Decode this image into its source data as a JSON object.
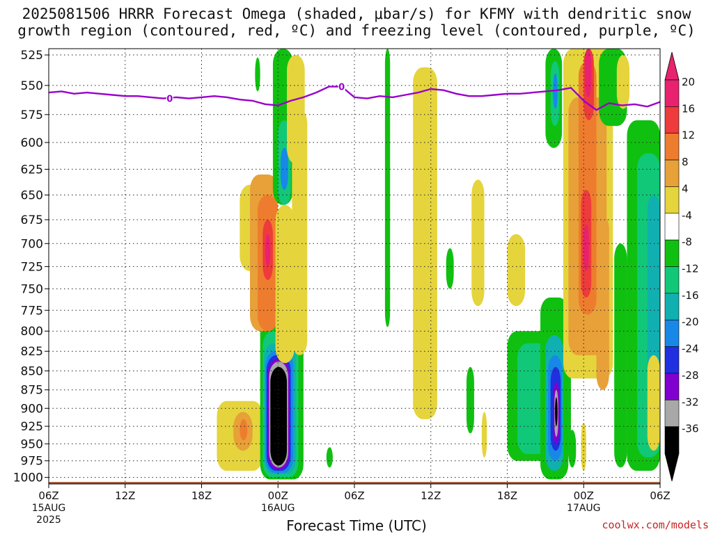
{
  "title_line_1": "2025081506 HRRR Forecast Omega (shaded, μbar/s) for KFMY with dendritic snow",
  "title_line_2": "growth region (contoured, red, ºC) and freezing level (contoured, purple, ºC)",
  "xlabel": "Forecast Time (UTC)",
  "credit": "coolwx.com/models",
  "chart_data": {
    "type": "heatmap",
    "title": "2025081506 HRRR Forecast Omega (shaded, μbar/s) for KFMY with dendritic snow growth region (contoured, red, ºC) and freezing level (contoured, purple, ºC)",
    "xlabel": "Forecast Time (UTC)",
    "ylabel": "",
    "x_range_hours": [
      0,
      48
    ],
    "y_range_mb": [
      1010,
      520
    ],
    "y_log_scale": true,
    "grid": true,
    "x_ticks": [
      {
        "hour": 0,
        "label": "06Z",
        "sub": "15AUG",
        "sub2": "2025"
      },
      {
        "hour": 6,
        "label": "12Z"
      },
      {
        "hour": 12,
        "label": "18Z"
      },
      {
        "hour": 18,
        "label": "00Z",
        "sub": "16AUG"
      },
      {
        "hour": 24,
        "label": "06Z"
      },
      {
        "hour": 30,
        "label": "12Z"
      },
      {
        "hour": 36,
        "label": "18Z"
      },
      {
        "hour": 42,
        "label": "00Z",
        "sub": "17AUG"
      },
      {
        "hour": 48,
        "label": "06Z"
      }
    ],
    "y_ticks": [
      525,
      550,
      575,
      600,
      625,
      650,
      675,
      700,
      725,
      750,
      775,
      800,
      825,
      850,
      875,
      900,
      925,
      950,
      975,
      1000
    ],
    "colorbar": {
      "labels": [
        "20",
        "16",
        "12",
        "8",
        "4",
        "-4",
        "-8",
        "-12",
        "-16",
        "-20",
        "-24",
        "-28",
        "-32",
        "-36"
      ],
      "colors": [
        "#e8226e",
        "#ee3b3b",
        "#ee7c2e",
        "#e8a038",
        "#e5d43c",
        "#ffffff",
        "#10c010",
        "#10c878",
        "#10b0b0",
        "#1888e8",
        "#2030e0",
        "#8000d0",
        "#a8a8a8",
        "#000000"
      ],
      "top_color": "#e8226e",
      "bottom_color": "#000000"
    },
    "freezing_level": {
      "label": "0",
      "color": "#9900cc",
      "points": [
        [
          0,
          556
        ],
        [
          1,
          555
        ],
        [
          2,
          557
        ],
        [
          3,
          556
        ],
        [
          4,
          557
        ],
        [
          5,
          558
        ],
        [
          6,
          559
        ],
        [
          7,
          559
        ],
        [
          8,
          560
        ],
        [
          9,
          561
        ],
        [
          10,
          560
        ],
        [
          11,
          561
        ],
        [
          12,
          560
        ],
        [
          13,
          559
        ],
        [
          14,
          560
        ],
        [
          15,
          562
        ],
        [
          16,
          563
        ],
        [
          17,
          566
        ],
        [
          18,
          567
        ],
        [
          19,
          563
        ],
        [
          20,
          560
        ],
        [
          21,
          556
        ],
        [
          22,
          551
        ],
        [
          23,
          551
        ],
        [
          24,
          560
        ],
        [
          25,
          561
        ],
        [
          26,
          559
        ],
        [
          27,
          560
        ],
        [
          28,
          558
        ],
        [
          29,
          556
        ],
        [
          30,
          553
        ],
        [
          31,
          554
        ],
        [
          32,
          557
        ],
        [
          33,
          559
        ],
        [
          34,
          559
        ],
        [
          35,
          558
        ],
        [
          36,
          557
        ],
        [
          37,
          557
        ],
        [
          38,
          556
        ],
        [
          39,
          555
        ],
        [
          40,
          554
        ],
        [
          41,
          552
        ],
        [
          42,
          563
        ],
        [
          43,
          571
        ],
        [
          44,
          565
        ],
        [
          45,
          567
        ],
        [
          46,
          566
        ],
        [
          47,
          568
        ],
        [
          48,
          564
        ]
      ],
      "label_hours": [
        9.5,
        23
      ]
    },
    "ground_mb": 1007,
    "ground_color": "#a0522d",
    "shaded_cells": [
      {
        "t0": 13.2,
        "t1": 16.8,
        "p0": 890,
        "p1": 990,
        "color": "#e5d43c"
      },
      {
        "t0": 14.5,
        "t1": 16.0,
        "p0": 905,
        "p1": 960,
        "color": "#e8a038"
      },
      {
        "t0": 15.0,
        "t1": 15.6,
        "p0": 915,
        "p1": 945,
        "color": "#ee7c2e"
      },
      {
        "t0": 16.6,
        "t1": 20.0,
        "p0": 785,
        "p1": 1003,
        "color": "#10c010"
      },
      {
        "t0": 16.8,
        "t1": 19.6,
        "p0": 800,
        "p1": 1000,
        "color": "#10c878"
      },
      {
        "t0": 16.9,
        "t1": 19.4,
        "p0": 815,
        "p1": 995,
        "color": "#10b0b0"
      },
      {
        "t0": 17.0,
        "t1": 19.2,
        "p0": 825,
        "p1": 993,
        "color": "#1888e8"
      },
      {
        "t0": 17.1,
        "t1": 19.0,
        "p0": 830,
        "p1": 990,
        "color": "#2030e0"
      },
      {
        "t0": 17.2,
        "t1": 18.9,
        "p0": 835,
        "p1": 988,
        "color": "#8000d0"
      },
      {
        "t0": 17.3,
        "t1": 18.8,
        "p0": 838,
        "p1": 985,
        "color": "#a8a8a8"
      },
      {
        "t0": 17.4,
        "t1": 18.7,
        "p0": 845,
        "p1": 982,
        "color": "#000000"
      },
      {
        "t0": 15.0,
        "t1": 17.4,
        "p0": 640,
        "p1": 730,
        "color": "#e5d43c"
      },
      {
        "t0": 15.8,
        "t1": 18.0,
        "p0": 630,
        "p1": 800,
        "color": "#e8a038"
      },
      {
        "t0": 16.4,
        "t1": 18.0,
        "p0": 650,
        "p1": 800,
        "color": "#ee7c2e"
      },
      {
        "t0": 16.8,
        "t1": 17.6,
        "p0": 675,
        "p1": 740,
        "color": "#ee3b3b"
      },
      {
        "t0": 17.0,
        "t1": 17.4,
        "p0": 690,
        "p1": 725,
        "color": "#e8226e"
      },
      {
        "t0": 16.2,
        "t1": 16.6,
        "p0": 527,
        "p1": 555,
        "color": "#10c010"
      },
      {
        "t0": 17.6,
        "t1": 19.2,
        "p0": 520,
        "p1": 660,
        "color": "#10c010"
      },
      {
        "t0": 18.0,
        "t1": 19.0,
        "p0": 580,
        "p1": 660,
        "color": "#10c878"
      },
      {
        "t0": 18.2,
        "t1": 18.8,
        "p0": 605,
        "p1": 645,
        "color": "#1888e8"
      },
      {
        "t0": 17.8,
        "t1": 19.3,
        "p0": 660,
        "p1": 840,
        "color": "#e5d43c"
      },
      {
        "t0": 18.7,
        "t1": 20.1,
        "p0": 525,
        "p1": 620,
        "color": "#e5d43c"
      },
      {
        "t0": 19.1,
        "t1": 20.3,
        "p0": 570,
        "p1": 830,
        "color": "#e5d43c"
      },
      {
        "t0": 21.8,
        "t1": 22.3,
        "p0": 955,
        "p1": 985,
        "color": "#10c010"
      },
      {
        "t0": 26.4,
        "t1": 26.8,
        "p0": 520,
        "p1": 795,
        "color": "#10c010"
      },
      {
        "t0": 28.6,
        "t1": 30.5,
        "p0": 535,
        "p1": 915,
        "color": "#e5d43c"
      },
      {
        "t0": 31.2,
        "t1": 31.8,
        "p0": 705,
        "p1": 750,
        "color": "#10c010"
      },
      {
        "t0": 33.2,
        "t1": 34.2,
        "p0": 635,
        "p1": 770,
        "color": "#e5d43c"
      },
      {
        "t0": 32.8,
        "t1": 33.4,
        "p0": 845,
        "p1": 935,
        "color": "#10c010"
      },
      {
        "t0": 34.0,
        "t1": 34.4,
        "p0": 905,
        "p1": 970,
        "color": "#e5d43c"
      },
      {
        "t0": 36.0,
        "t1": 37.4,
        "p0": 690,
        "p1": 770,
        "color": "#e5d43c"
      },
      {
        "t0": 36.0,
        "t1": 41.0,
        "p0": 800,
        "p1": 975,
        "color": "#10c010"
      },
      {
        "t0": 36.8,
        "t1": 40.8,
        "p0": 815,
        "p1": 965,
        "color": "#10c878"
      },
      {
        "t0": 38.6,
        "t1": 40.8,
        "p0": 760,
        "p1": 1003,
        "color": "#10c010"
      },
      {
        "t0": 39.0,
        "t1": 40.4,
        "p0": 805,
        "p1": 990,
        "color": "#10b0b0"
      },
      {
        "t0": 39.2,
        "t1": 40.3,
        "p0": 830,
        "p1": 975,
        "color": "#1888e8"
      },
      {
        "t0": 39.4,
        "t1": 40.2,
        "p0": 845,
        "p1": 960,
        "color": "#2030e0"
      },
      {
        "t0": 39.6,
        "t1": 40.1,
        "p0": 865,
        "p1": 950,
        "color": "#8000d0"
      },
      {
        "t0": 39.7,
        "t1": 40.0,
        "p0": 875,
        "p1": 940,
        "color": "#a8a8a8"
      },
      {
        "t0": 39.75,
        "t1": 39.95,
        "p0": 885,
        "p1": 925,
        "color": "#000000"
      },
      {
        "t0": 39.0,
        "t1": 40.3,
        "p0": 520,
        "p1": 605,
        "color": "#10c010"
      },
      {
        "t0": 39.4,
        "t1": 40.1,
        "p0": 530,
        "p1": 585,
        "color": "#10c878"
      },
      {
        "t0": 39.6,
        "t1": 39.95,
        "p0": 540,
        "p1": 570,
        "color": "#1888e8"
      },
      {
        "t0": 40.4,
        "t1": 44.3,
        "p0": 520,
        "p1": 860,
        "color": "#e5d43c"
      },
      {
        "t0": 40.8,
        "t1": 43.8,
        "p0": 560,
        "p1": 830,
        "color": "#e8a038"
      },
      {
        "t0": 41.6,
        "t1": 43.0,
        "p0": 530,
        "p1": 780,
        "color": "#ee7c2e"
      },
      {
        "t0": 42.0,
        "t1": 42.8,
        "p0": 520,
        "p1": 580,
        "color": "#ee3b3b"
      },
      {
        "t0": 42.1,
        "t1": 42.6,
        "p0": 520,
        "p1": 560,
        "color": "#e8226e"
      },
      {
        "t0": 41.8,
        "t1": 42.6,
        "p0": 645,
        "p1": 760,
        "color": "#ee3b3b"
      },
      {
        "t0": 42.0,
        "t1": 42.4,
        "p0": 680,
        "p1": 730,
        "color": "#e8226e"
      },
      {
        "t0": 43.0,
        "t1": 44.0,
        "p0": 670,
        "p1": 875,
        "color": "#e8a038"
      },
      {
        "t0": 43.2,
        "t1": 45.4,
        "p0": 520,
        "p1": 585,
        "color": "#10c010"
      },
      {
        "t0": 44.6,
        "t1": 45.6,
        "p0": 525,
        "p1": 570,
        "color": "#e5d43c"
      },
      {
        "t0": 44.4,
        "t1": 45.4,
        "p0": 700,
        "p1": 985,
        "color": "#10c010"
      },
      {
        "t0": 45.4,
        "t1": 48.0,
        "p0": 580,
        "p1": 990,
        "color": "#10c010"
      },
      {
        "t0": 46.2,
        "t1": 48.0,
        "p0": 610,
        "p1": 970,
        "color": "#10c878"
      },
      {
        "t0": 47.0,
        "t1": 48.0,
        "p0": 650,
        "p1": 960,
        "color": "#10b0b0"
      },
      {
        "t0": 40.8,
        "t1": 41.4,
        "p0": 930,
        "p1": 985,
        "color": "#10c010"
      },
      {
        "t0": 41.8,
        "t1": 42.2,
        "p0": 920,
        "p1": 990,
        "color": "#e5d43c"
      },
      {
        "t0": 47.0,
        "t1": 48.0,
        "p0": 830,
        "p1": 960,
        "color": "#e5d43c"
      }
    ]
  }
}
